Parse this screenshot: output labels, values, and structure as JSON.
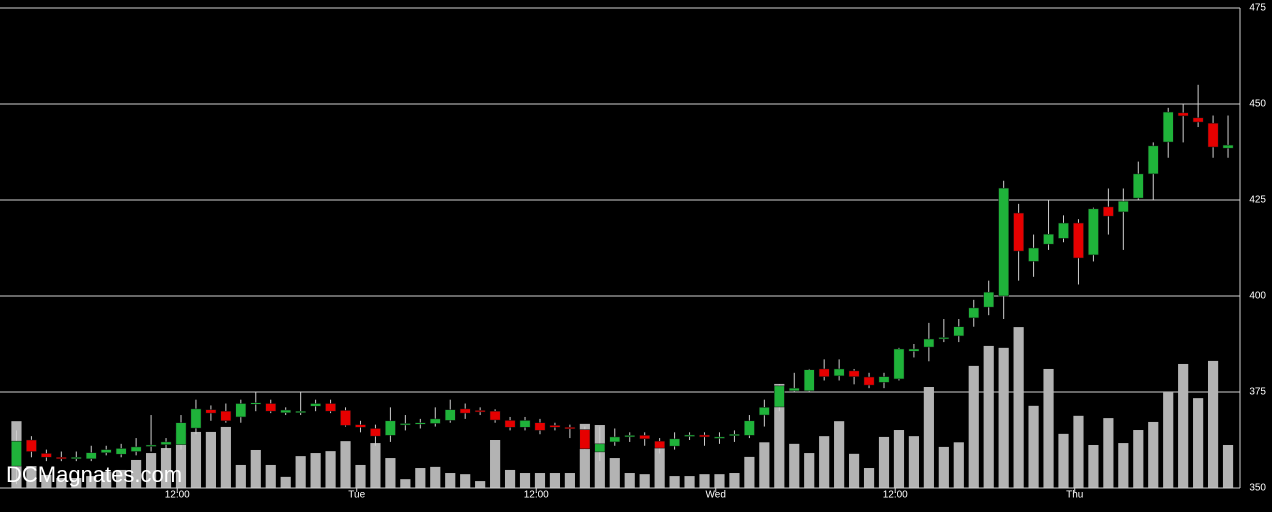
{
  "chart_data": {
    "type": "candlestick",
    "watermark": "DCMagnates.com",
    "open": [
      355.7,
      362.5,
      359,
      358,
      357.8,
      357.6,
      359.2,
      358.8,
      359.5,
      361,
      361.3,
      361.3,
      365.6,
      370.4,
      370,
      368.5,
      372,
      372,
      369.6,
      370,
      371.3,
      372,
      370.2,
      366.5,
      365.5,
      363.7,
      366.6,
      366.8,
      366.8,
      367.6,
      370.6,
      370.2,
      370,
      367.6,
      365.8,
      367,
      366.3,
      365.8,
      365.2,
      359.4,
      362,
      363.3,
      363.7,
      362.2,
      360.9,
      363.6,
      363.8,
      363.3,
      364,
      363.7,
      369,
      371.1,
      375.3,
      375.3,
      381,
      379.2,
      380.5,
      378.9,
      377.5,
      378.4,
      385.6,
      386.7,
      389,
      389.6,
      394.3,
      397.1,
      400,
      421.6,
      409,
      413.5,
      415,
      419,
      410.7,
      423.2,
      421.9,
      425.5,
      431.8,
      440.1,
      447.7,
      446.4,
      445,
      438.5
    ],
    "high": [
      365,
      363.5,
      360,
      359.5,
      359.5,
      361,
      361,
      361.5,
      363,
      369,
      363,
      369,
      373,
      371.5,
      372,
      373,
      375,
      373,
      371,
      375,
      373,
      373,
      371,
      367.5,
      366.5,
      371,
      369,
      368,
      371,
      373,
      372,
      371,
      370.5,
      368.5,
      368.5,
      368,
      367,
      366.5,
      366,
      366,
      365.5,
      364.5,
      364.5,
      363,
      364.5,
      364.5,
      364.5,
      364.5,
      365,
      369,
      373,
      377,
      380,
      381,
      383.5,
      383.5,
      381,
      380,
      380,
      386.5,
      387.5,
      393,
      394,
      394,
      399,
      404,
      430,
      424,
      416,
      425,
      421,
      420,
      423,
      428,
      428,
      435,
      440,
      449,
      450,
      455,
      447,
      447
    ],
    "low": [
      351,
      358,
      357,
      357,
      357,
      357,
      358.5,
      358,
      358.5,
      359.5,
      360,
      360,
      364,
      367.5,
      367,
      367,
      370,
      369.5,
      369,
      369,
      370,
      369.5,
      366,
      364.5,
      361,
      362,
      365,
      365.5,
      366,
      367,
      368,
      369,
      367,
      365,
      365,
      364,
      365,
      363,
      360,
      357,
      361,
      362,
      361,
      359,
      360,
      362.5,
      361,
      361.5,
      362,
      363,
      366,
      370,
      375,
      375,
      378,
      378,
      377,
      376,
      376,
      378,
      384,
      383,
      388,
      388,
      392,
      395,
      394,
      404,
      405,
      412,
      414,
      403,
      409,
      416,
      412,
      425,
      425,
      436,
      440,
      444,
      436,
      436
    ],
    "close": [
      362.2,
      359.5,
      358,
      357.6,
      358,
      359.2,
      360,
      360.3,
      360.7,
      361.2,
      362,
      367,
      370.6,
      369.5,
      367.5,
      372,
      372.2,
      370,
      370.3,
      370,
      372,
      370,
      366.3,
      365.8,
      363.5,
      367.5,
      366.8,
      367,
      368,
      370.4,
      369.5,
      370,
      367.7,
      365.8,
      367.6,
      365,
      365.8,
      365.6,
      360.2,
      361.5,
      363.3,
      363.7,
      362.8,
      360.4,
      362.8,
      363.8,
      363.3,
      363.3,
      364,
      367.5,
      371,
      376.6,
      376,
      380.8,
      379,
      381,
      379,
      376.8,
      379,
      386.2,
      386.2,
      388.8,
      389.2,
      392,
      396.9,
      401,
      428.1,
      411.7,
      412.5,
      416.1,
      419,
      409.9,
      422.7,
      420.8,
      424.7,
      431.8,
      439.1,
      447.9,
      446.9,
      445.3,
      438.8,
      439.3
    ],
    "volume": [
      367.4,
      355.7,
      353.4,
      352.6,
      352.6,
      353.1,
      354.2,
      354.7,
      357.3,
      359.1,
      360.4,
      364.3,
      364.6,
      364.6,
      365.9,
      356,
      359.9,
      356,
      352.9,
      358.3,
      359.1,
      359.6,
      362.2,
      356,
      361.7,
      357.8,
      352.3,
      355.2,
      355.5,
      353.9,
      353.6,
      351.8,
      362.5,
      354.7,
      353.9,
      353.9,
      353.9,
      353.9,
      366.7,
      366.4,
      357.8,
      353.9,
      353.6,
      360.4,
      353.1,
      353.1,
      353.6,
      353.6,
      353.9,
      358.1,
      361.9,
      377.1,
      361.5,
      359.1,
      363.5,
      367.4,
      358.9,
      355.2,
      363.3,
      365.1,
      363.5,
      376.3,
      360.7,
      361.9,
      381.8,
      387,
      386.5,
      391.9,
      371.4,
      381,
      364.1,
      368.8,
      361.2,
      368.2,
      361.7,
      365.1,
      367.2,
      375,
      382.3,
      373.4,
      383.1,
      361.2
    ],
    "up_color": "#1fb33a",
    "down_color": "#e60000",
    "volume_color": "#b3b3b3",
    "xlim": [
      -1.1,
      81.8
    ],
    "xticks": [
      {
        "value": 10.75,
        "label": "12:00"
      },
      {
        "value": 22.75,
        "label": "Tue"
      },
      {
        "value": 34.75,
        "label": "12:00"
      },
      {
        "value": 46.75,
        "label": "Wed"
      },
      {
        "value": 58.75,
        "label": "12:00"
      },
      {
        "value": 70.75,
        "label": "Thu"
      }
    ],
    "ylim": [
      350,
      475
    ],
    "yticks": [
      350,
      375,
      400,
      425,
      450,
      475
    ],
    "grid": true
  }
}
